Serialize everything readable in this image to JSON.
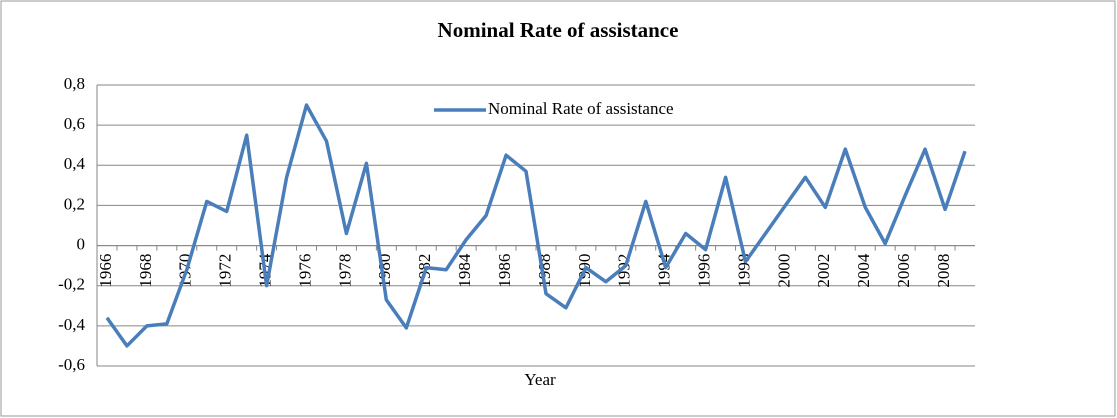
{
  "chart_data": {
    "type": "line",
    "title": "Nominal Rate of assistance",
    "x_label": "Year",
    "categories": [
      1966,
      null,
      1968,
      null,
      1970,
      null,
      1972,
      null,
      1974,
      null,
      1976,
      null,
      1978,
      null,
      1980,
      null,
      1982,
      null,
      1984,
      null,
      1986,
      null,
      1988,
      null,
      1990,
      null,
      1992,
      null,
      1994,
      null,
      1996,
      null,
      1998,
      null,
      2000,
      null,
      2002,
      null,
      2004,
      null,
      2006,
      null,
      2008,
      null
    ],
    "series": [
      {
        "name": "Nominal Rate of assistance",
        "color": "#4a7ebb",
        "values": [
          -0.36,
          -0.5,
          -0.4,
          -0.39,
          -0.12,
          0.22,
          0.17,
          0.55,
          -0.2,
          0.34,
          0.7,
          0.52,
          0.06,
          0.41,
          -0.27,
          -0.41,
          -0.11,
          -0.12,
          0.03,
          0.15,
          0.45,
          0.37,
          -0.24,
          -0.31,
          -0.11,
          -0.18,
          -0.1,
          0.22,
          -0.11,
          0.06,
          -0.02,
          0.34,
          -0.08,
          0.06,
          0.2,
          0.34,
          0.19,
          0.48,
          0.19,
          0.01,
          0.25,
          0.48,
          0.18,
          0.47
        ]
      }
    ],
    "ylim": [
      -0.6,
      0.8
    ],
    "yticks": [
      {
        "value": -0.6,
        "label": "-0,6"
      },
      {
        "value": -0.4,
        "label": "-0,4"
      },
      {
        "value": -0.2,
        "label": "-0,2"
      },
      0,
      {
        "value": 0.2,
        "label": "0,2"
      },
      {
        "value": 0.4,
        "label": "0,4"
      },
      {
        "value": 0.6,
        "label": "0,6"
      },
      {
        "value": 0.8,
        "label": "0,8"
      }
    ],
    "grid": true,
    "legend": "top"
  }
}
